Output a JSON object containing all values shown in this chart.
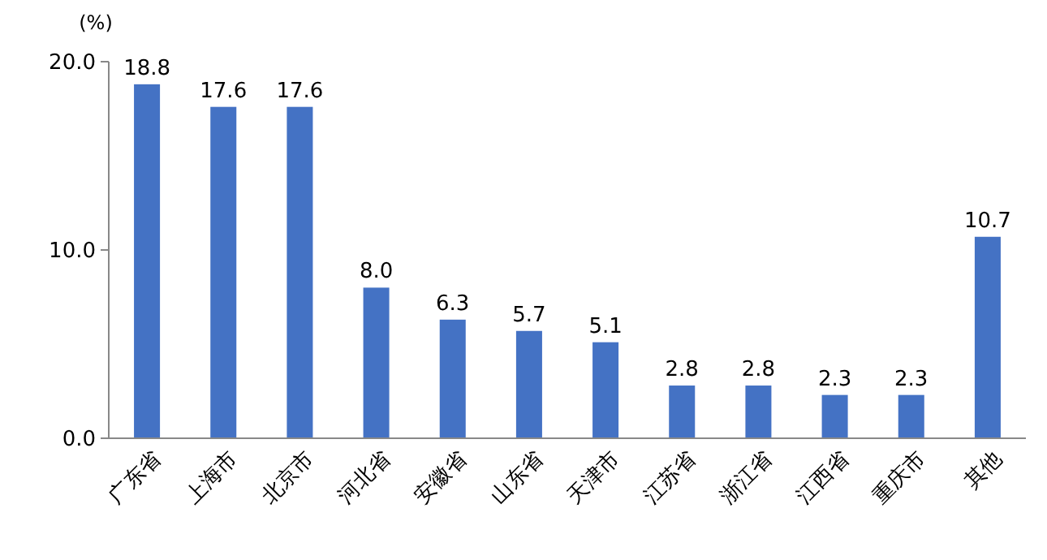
{
  "chart_data": {
    "type": "bar",
    "ylabel": "(%)",
    "categories": [
      "广东省",
      "上海市",
      "北京市",
      "河北省",
      "安徽省",
      "山东省",
      "天津市",
      "江苏省",
      "浙江省",
      "江西省",
      "重庆市",
      "其他"
    ],
    "values": [
      18.8,
      17.6,
      17.6,
      8.0,
      6.3,
      5.7,
      5.1,
      2.8,
      2.8,
      2.3,
      2.3,
      10.7
    ],
    "value_labels": [
      "18.8",
      "17.6",
      "17.6",
      "8.0",
      "6.3",
      "5.7",
      "5.1",
      "2.8",
      "2.8",
      "2.3",
      "2.3",
      "10.7"
    ],
    "color": "#4472c4",
    "ylim": [
      0,
      20
    ],
    "yticks": [
      {
        "value": 0,
        "label": "0.0"
      },
      {
        "value": 10,
        "label": "10.0"
      },
      {
        "value": 20,
        "label": "20.0"
      }
    ],
    "grid": false
  }
}
